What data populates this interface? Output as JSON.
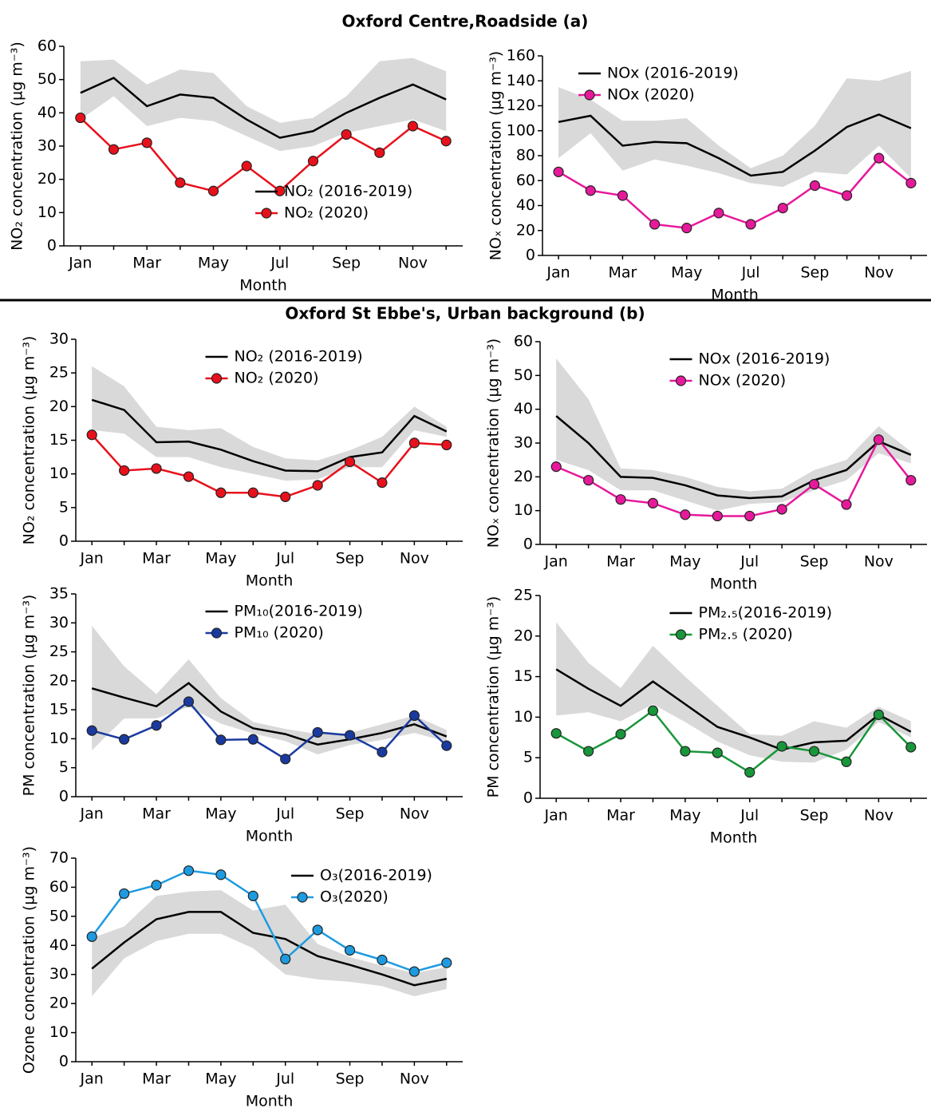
{
  "titles": [
    "Oxford Centre,Roadside (a)",
    "Oxford St Ebbe's, Urban background (b)"
  ],
  "chart_data": [
    {
      "type": "line",
      "ylabel": "NO₂ concentration (µg m⁻³)",
      "xlabel": "Month",
      "categories": [
        "Jan",
        null,
        "Mar",
        null,
        "May",
        null,
        "Jul",
        null,
        "Sep",
        null,
        "Nov",
        null
      ],
      "ylim": [
        0,
        60
      ],
      "yticks": [
        0,
        10,
        20,
        30,
        40,
        50,
        60
      ],
      "legend": "lower center",
      "band": {
        "color": "#d9d9d9",
        "upper": [
          55.5,
          56,
          48.5,
          53,
          52,
          42,
          37,
          38.5,
          45,
          55.5,
          56.5,
          52.5
        ],
        "lower": [
          38,
          45,
          36,
          38.5,
          37.5,
          33,
          28.5,
          30,
          34,
          36,
          38,
          34.5
        ]
      },
      "series": [
        {
          "name": "NO₂ (2016-2019)",
          "color": "#000000",
          "marker": false,
          "values": [
            46,
            50.5,
            42,
            45.5,
            44.5,
            38,
            32.5,
            34.5,
            40,
            44.5,
            48.5,
            44
          ]
        },
        {
          "name": "NO₂ (2020)",
          "color": "#e8101b",
          "marker": true,
          "values": [
            38.5,
            29,
            31,
            19,
            16.5,
            24,
            16.5,
            25.5,
            33.5,
            28,
            36,
            31.5
          ]
        }
      ]
    },
    {
      "type": "line",
      "ylabel": "NOₓ concentration (µg m⁻³)",
      "xlabel": "Month",
      "categories": [
        "Jan",
        null,
        "Mar",
        null,
        "May",
        null,
        "Jul",
        null,
        "Sep",
        null,
        "Nov",
        null
      ],
      "ylim": [
        0,
        160
      ],
      "yticks": [
        0,
        20,
        40,
        60,
        80,
        100,
        120,
        140,
        160
      ],
      "legend": "upper left",
      "band": {
        "color": "#d9d9d9",
        "upper": [
          135,
          125,
          108,
          108,
          110,
          88,
          70,
          80,
          104,
          142,
          140,
          148
        ],
        "lower": [
          78,
          98,
          68,
          77,
          72,
          66,
          58,
          55,
          67,
          65,
          88,
          62
        ]
      },
      "series": [
        {
          "name": "NOx (2016-2019)",
          "color": "#000000",
          "marker": false,
          "values": [
            107,
            112,
            88,
            91,
            90,
            78,
            64,
            67,
            84,
            103,
            113,
            102
          ]
        },
        {
          "name": "NOx (2020)",
          "color": "#e6199b",
          "marker": true,
          "values": [
            67,
            52,
            48,
            25,
            22,
            34,
            25,
            38,
            56,
            48,
            78,
            58
          ]
        }
      ]
    },
    {
      "type": "line",
      "ylabel": "NO₂ concentration (µg m⁻³)",
      "xlabel": "Month",
      "categories": [
        "Jan",
        null,
        "Mar",
        null,
        "May",
        null,
        "Jul",
        null,
        "Sep",
        null,
        "Nov",
        null
      ],
      "ylim": [
        0,
        30
      ],
      "yticks": [
        0,
        5,
        10,
        15,
        20,
        25,
        30
      ],
      "legend": "upper center",
      "band": {
        "color": "#d9d9d9",
        "upper": [
          26,
          23,
          17,
          16.5,
          16.8,
          14,
          12.3,
          12,
          13.5,
          15.5,
          20,
          17
        ],
        "lower": [
          16.5,
          16,
          12.5,
          12.5,
          11,
          10,
          9,
          9.2,
          11,
          11,
          16.5,
          15.5
        ]
      },
      "series": [
        {
          "name": "NO₂ (2016-2019)",
          "color": "#000000",
          "marker": false,
          "values": [
            21,
            19.5,
            14.7,
            14.8,
            13.6,
            11.9,
            10.5,
            10.4,
            12.5,
            13.2,
            18.6,
            16.3
          ]
        },
        {
          "name": "NO₂ (2020)",
          "color": "#e8101b",
          "marker": true,
          "values": [
            15.8,
            10.5,
            10.8,
            9.6,
            7.2,
            7.2,
            6.6,
            8.3,
            11.8,
            8.7,
            14.6,
            14.3
          ]
        }
      ]
    },
    {
      "type": "line",
      "ylabel": "NOₓ concentration (µg m⁻³)",
      "xlabel": "Month",
      "categories": [
        "Jan",
        null,
        "Mar",
        null,
        "May",
        null,
        "Jul",
        null,
        "Sep",
        null,
        "Nov",
        null
      ],
      "ylim": [
        0,
        60
      ],
      "yticks": [
        0,
        10,
        20,
        30,
        40,
        50,
        60
      ],
      "legend": "upper center",
      "band": {
        "color": "#d9d9d9",
        "upper": [
          55,
          43,
          22.5,
          22,
          20,
          17,
          15.7,
          16.5,
          22,
          25,
          35,
          27.5
        ],
        "lower": [
          25,
          22,
          16,
          16,
          13,
          10,
          12,
          12.5,
          16,
          19,
          27,
          24
        ]
      },
      "series": [
        {
          "name": "NOx (2016-2019)",
          "color": "#000000",
          "marker": false,
          "values": [
            38,
            30,
            20,
            19.7,
            17.5,
            14.5,
            13.7,
            14.2,
            19,
            22,
            30.5,
            26.5
          ]
        },
        {
          "name": "NOx (2020)",
          "color": "#e6199b",
          "marker": true,
          "values": [
            23,
            19,
            13.3,
            12.2,
            8.8,
            8.4,
            8.4,
            10.4,
            17.8,
            11.8,
            31,
            19
          ]
        }
      ]
    },
    {
      "type": "line",
      "ylabel": "PM concentration (µg m⁻³)",
      "xlabel": "Month",
      "categories": [
        "Jan",
        null,
        "Mar",
        null,
        "May",
        null,
        "Jul",
        null,
        "Sep",
        null,
        "Nov",
        null
      ],
      "ylim": [
        0,
        35
      ],
      "yticks": [
        0,
        5,
        10,
        15,
        20,
        25,
        30,
        35
      ],
      "legend": "upper center",
      "band": {
        "color": "#d9d9d9",
        "upper": [
          29.5,
          22.5,
          17.7,
          23.7,
          17,
          12.9,
          11.7,
          10.8,
          11,
          12.5,
          14,
          11.5
        ],
        "lower": [
          8,
          13.5,
          13.5,
          15.5,
          12.6,
          10.9,
          9.6,
          7.3,
          8.9,
          9.8,
          11,
          9.5
        ]
      },
      "series": [
        {
          "name": "PM₁₀(2016-2019)",
          "color": "#000000",
          "marker": false,
          "values": [
            18.7,
            17.1,
            15.6,
            19.6,
            14.7,
            11.8,
            10.8,
            9,
            9.9,
            11,
            12.5,
            10.4
          ]
        },
        {
          "name": "PM₁₀ (2020)",
          "color": "#1a3aa0",
          "marker": true,
          "values": [
            11.4,
            9.9,
            12.3,
            16.4,
            9.8,
            9.9,
            6.5,
            11.1,
            10.6,
            7.7,
            14,
            8.8
          ]
        }
      ]
    },
    {
      "type": "line",
      "ylabel": "PM concentration (µg m⁻³)",
      "xlabel": "Month",
      "categories": [
        "Jan",
        null,
        "Mar",
        null,
        "May",
        null,
        "Jul",
        null,
        "Sep",
        null,
        "Nov",
        null
      ],
      "ylim": [
        0,
        25
      ],
      "yticks": [
        0,
        5,
        10,
        15,
        20,
        25
      ],
      "legend": "upper center",
      "band": {
        "color": "#d9d9d9",
        "upper": [
          21.7,
          16.7,
          13.6,
          18.8,
          15,
          11.4,
          7.9,
          7.7,
          9.5,
          8.7,
          11.3,
          9.5
        ],
        "lower": [
          10.2,
          10.6,
          9.5,
          11.6,
          9.4,
          7,
          5.3,
          4.5,
          4.4,
          6,
          9.4,
          7.5
        ]
      },
      "series": [
        {
          "name": "PM₂.₅(2016-2019)",
          "color": "#000000",
          "marker": false,
          "values": [
            15.9,
            13.5,
            11.4,
            14.4,
            11.6,
            8.8,
            7.5,
            6,
            6.9,
            7.1,
            10.3,
            8.2
          ]
        },
        {
          "name": "PM₂.₅ (2020)",
          "color": "#18963a",
          "marker": true,
          "values": [
            8,
            5.8,
            7.9,
            10.8,
            5.8,
            5.6,
            3.2,
            6.4,
            5.8,
            4.5,
            10.3,
            6.3
          ]
        }
      ]
    },
    {
      "type": "line",
      "ylabel": "Ozone concentration (µg m⁻³)",
      "xlabel": "Month",
      "categories": [
        "Jan",
        null,
        "Mar",
        null,
        "May",
        null,
        "Jul",
        null,
        "Sep",
        null,
        "Nov",
        null
      ],
      "ylim": [
        0,
        70
      ],
      "yticks": [
        0,
        10,
        20,
        30,
        40,
        50,
        60,
        70
      ],
      "legend": "upper right",
      "band": {
        "color": "#d9d9d9",
        "upper": [
          42.5,
          46.5,
          57,
          58.5,
          59,
          52,
          54,
          40.5,
          36,
          33,
          30.5,
          32.5
        ],
        "lower": [
          22.5,
          35.5,
          41.5,
          44,
          44,
          39,
          30,
          28.3,
          27.5,
          26,
          22.5,
          25
        ]
      },
      "series": [
        {
          "name": "O₃(2016-2019)",
          "color": "#000000",
          "marker": false,
          "values": [
            32,
            41,
            49,
            51.5,
            51.5,
            44.3,
            42.2,
            36.3,
            33.3,
            30,
            26.3,
            28.5
          ]
        },
        {
          "name": "O₃(2020)",
          "color": "#1e9be0",
          "marker": true,
          "values": [
            43,
            57.8,
            60.7,
            65.7,
            64.3,
            57,
            35.3,
            45.3,
            38.3,
            35,
            31,
            34
          ]
        }
      ]
    }
  ]
}
